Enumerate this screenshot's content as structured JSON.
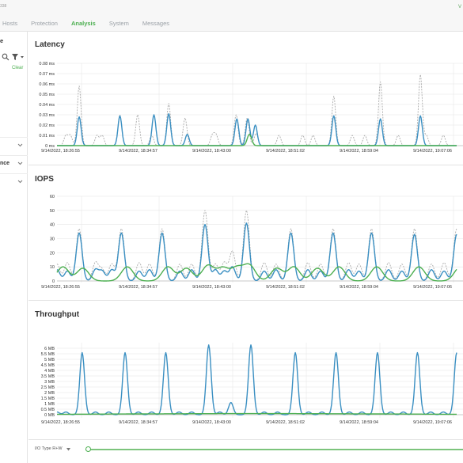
{
  "topbar": {
    "ip_fragment": "338",
    "corner_text": "V"
  },
  "tabs": [
    {
      "label": "Hosts",
      "active": false
    },
    {
      "label": "Protection",
      "active": false
    },
    {
      "label": "Analysis",
      "active": true
    },
    {
      "label": "System",
      "active": false
    },
    {
      "label": "Messages",
      "active": false
    }
  ],
  "sidebar": {
    "title_fragment": "e",
    "clear_label": "Clear",
    "rows": [
      {
        "label": ""
      },
      {
        "label": "nce"
      },
      {
        "label": ""
      }
    ],
    "icons": {
      "search": "search-icon",
      "filter": "filter-icon",
      "chevron": "chevron-down-icon"
    }
  },
  "x_tick_labels": [
    "9/14/2022, 18:26:55",
    "9/14/2022, 18:34:57",
    "9/14/2022, 18:43:00",
    "9/14/2022, 18:51:02",
    "9/14/2022, 18:59:04",
    "9/14/2022, 19:07:06"
  ],
  "colors": {
    "total": "#aaaaaa",
    "read": "#3a8fc2",
    "write": "#4caf50",
    "grid": "#e6e6e6",
    "active_tab": "#4caf50"
  },
  "chart_data": [
    {
      "type": "line",
      "title": "Latency",
      "y_ticks": [
        "0 ms",
        "0.01 ms",
        "0.02 ms",
        "0.03 ms",
        "0.04 ms",
        "0.05 ms",
        "0.06 ms",
        "0.07 ms",
        "0.08 ms"
      ],
      "ylim": [
        0,
        0.08
      ],
      "x_range": [
        0,
        540
      ],
      "series": [
        {
          "key": "total",
          "style": "dashed",
          "peaks": [
            [
              12,
              0.01
            ],
            [
              18,
              0.01
            ],
            [
              30,
              0.058
            ],
            [
              54,
              0.01
            ],
            [
              61,
              0.01
            ],
            [
              85,
              0.03
            ],
            [
              109,
              0.03
            ],
            [
              128,
              0.01
            ],
            [
              151,
              0.041
            ],
            [
              173,
              0.027
            ],
            [
              210,
              0.01
            ],
            [
              215,
              0.01
            ],
            [
              242,
              0.03
            ],
            [
              257,
              0.027
            ],
            [
              269,
              0.012
            ],
            [
              300,
              0.01
            ],
            [
              332,
              0.01
            ],
            [
              346,
              0.01
            ],
            [
              374,
              0.048
            ],
            [
              399,
              0.01
            ],
            [
              416,
              0.01
            ],
            [
              437,
              0.062
            ],
            [
              461,
              0.01
            ],
            [
              491,
              0.069
            ],
            [
              499,
              0.01
            ],
            [
              522,
              0.01
            ]
          ],
          "width": 2.6
        },
        {
          "key": "read",
          "style": "solid",
          "peaks": [
            [
              30,
              0.028
            ],
            [
              85,
              0.029
            ],
            [
              131,
              0.03
            ],
            [
              151,
              0.031
            ],
            [
              176,
              0.011
            ],
            [
              243,
              0.026
            ],
            [
              258,
              0.026
            ],
            [
              268,
              0.02
            ],
            [
              374,
              0.029
            ],
            [
              437,
              0.026
            ],
            [
              491,
              0.029
            ]
          ],
          "width": 2.6
        },
        {
          "key": "write",
          "style": "solid",
          "peaks": [
            [
              260,
              0.011
            ]
          ],
          "width": 3
        }
      ]
    },
    {
      "type": "line",
      "title": "IOPS",
      "y_ticks": [
        "0",
        "10",
        "20",
        "30",
        "40",
        "50",
        "60"
      ],
      "ylim": [
        0,
        60
      ],
      "x_range": [
        0,
        540
      ],
      "series": [
        {
          "key": "total",
          "style": "dashed",
          "peaks": [
            [
              0,
              12
            ],
            [
              14,
              13
            ],
            [
              30,
              37
            ],
            [
              52,
              13
            ],
            [
              61,
              8
            ],
            [
              74,
              12
            ],
            [
              87,
              37
            ],
            [
              111,
              13
            ],
            [
              125,
              12
            ],
            [
              142,
              37
            ],
            [
              166,
              12
            ],
            [
              182,
              12
            ],
            [
              200,
              50
            ],
            [
              214,
              12
            ],
            [
              226,
              13
            ],
            [
              237,
              21
            ],
            [
              256,
              50
            ],
            [
              280,
              13
            ],
            [
              296,
              12
            ],
            [
              316,
              37
            ],
            [
              339,
              13
            ],
            [
              356,
              12
            ],
            [
              373,
              37
            ],
            [
              394,
              13
            ],
            [
              408,
              12
            ],
            [
              425,
              37
            ],
            [
              448,
              13
            ],
            [
              466,
              12
            ],
            [
              483,
              37
            ],
            [
              506,
              12
            ],
            [
              523,
              13
            ],
            [
              540,
              37
            ]
          ],
          "width": 4
        },
        {
          "key": "read",
          "style": "solid",
          "peaks": [
            [
              0,
              8
            ],
            [
              14,
              7
            ],
            [
              30,
              34
            ],
            [
              52,
              8
            ],
            [
              61,
              7
            ],
            [
              74,
              8
            ],
            [
              87,
              34
            ],
            [
              111,
              7
            ],
            [
              125,
              8
            ],
            [
              142,
              34
            ],
            [
              166,
              7
            ],
            [
              182,
              8
            ],
            [
              200,
              40
            ],
            [
              214,
              8
            ],
            [
              226,
              7
            ],
            [
              237,
              10
            ],
            [
              256,
              41
            ],
            [
              280,
              7
            ],
            [
              296,
              8
            ],
            [
              316,
              34
            ],
            [
              339,
              8
            ],
            [
              356,
              7
            ],
            [
              373,
              34
            ],
            [
              394,
              8
            ],
            [
              408,
              7
            ],
            [
              425,
              34
            ],
            [
              448,
              8
            ],
            [
              466,
              7
            ],
            [
              483,
              33
            ],
            [
              506,
              8
            ],
            [
              523,
              7
            ],
            [
              540,
              33
            ]
          ],
          "width": 4
        },
        {
          "key": "write",
          "style": "solid",
          "peaks": [
            [
              8,
              10
            ],
            [
              35,
              9
            ],
            [
              95,
              10
            ],
            [
              150,
              10
            ],
            [
              175,
              9
            ],
            [
              204,
              11
            ],
            [
              224,
              9
            ],
            [
              243,
              9
            ],
            [
              260,
              11
            ],
            [
              297,
              9
            ],
            [
              320,
              10
            ],
            [
              352,
              9
            ],
            [
              381,
              10
            ],
            [
              432,
              10
            ],
            [
              489,
              10
            ],
            [
              545,
              10
            ]
          ],
          "width": 8
        }
      ]
    },
    {
      "type": "line",
      "title": "Throughput",
      "y_ticks": [
        "0 MB",
        "0.5 MB",
        "1 MB",
        "1.5 MB",
        "2 MB",
        "2.5 MB",
        "3 MB",
        "3.5 MB",
        "4 MB",
        "4.5 MB",
        "5 MB",
        "5.5 MB",
        "6 MB"
      ],
      "ylim": [
        0,
        6.5
      ],
      "x_range": [
        0,
        540
      ],
      "series": [
        {
          "key": "read",
          "style": "solid",
          "peaks": [
            [
              0,
              0.25
            ],
            [
              12,
              0.25
            ],
            [
              34,
              5.6
            ],
            [
              52,
              0.25
            ],
            [
              70,
              0.25
            ],
            [
              92,
              5.6
            ],
            [
              110,
              0.25
            ],
            [
              128,
              0.25
            ],
            [
              147,
              5.6
            ],
            [
              165,
              0.25
            ],
            [
              182,
              0.25
            ],
            [
              205,
              6.3
            ],
            [
              220,
              0.25
            ],
            [
              235,
              1.1
            ],
            [
              262,
              6.3
            ],
            [
              280,
              0.25
            ],
            [
              298,
              0.25
            ],
            [
              322,
              5.6
            ],
            [
              340,
              0.25
            ],
            [
              358,
              0.25
            ],
            [
              377,
              5.6
            ],
            [
              395,
              0.25
            ],
            [
              412,
              0.25
            ],
            [
              433,
              5.6
            ],
            [
              451,
              0.25
            ],
            [
              468,
              0.25
            ],
            [
              487,
              5.6
            ],
            [
              505,
              0.25
            ],
            [
              522,
              0.25
            ],
            [
              540,
              5.6
            ]
          ],
          "width": 3.2
        },
        {
          "key": "write",
          "style": "solid",
          "peaks": [
            [
              270,
              0.1
            ]
          ],
          "width": 200
        }
      ]
    }
  ],
  "footer": {
    "io_type_label": "I/O Type R+W"
  }
}
